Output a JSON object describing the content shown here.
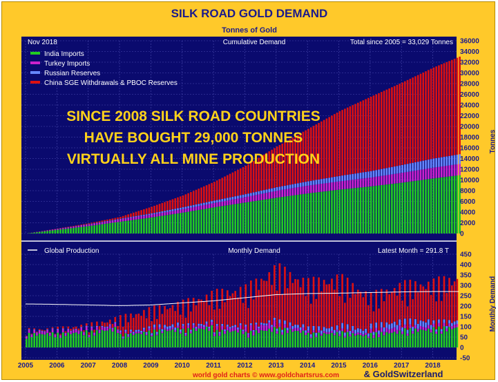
{
  "chart_data": [
    {
      "type": "bar",
      "title": "SILK ROAD GOLD DEMAND",
      "subtitle": "Tonnes of Gold",
      "panel_title": "Cumulative Demand",
      "date_label": "Nov 2018",
      "total_label": "Total since 2005 = 33,029 Tonnes",
      "ylabel": "Tonnes",
      "ylim": [
        0,
        36000
      ],
      "y_ticks": [
        0,
        2000,
        4000,
        6000,
        8000,
        10000,
        12000,
        14000,
        16000,
        18000,
        20000,
        22000,
        24000,
        26000,
        28000,
        30000,
        32000,
        34000,
        36000
      ],
      "stacked": true,
      "series": [
        {
          "name": "India Imports",
          "color": "#22cc22",
          "x": [
            "2005",
            "2006",
            "2007",
            "2008",
            "2009",
            "2010",
            "2011",
            "2012",
            "2013",
            "2014",
            "2015",
            "2016",
            "2017",
            "2018",
            "Nov 2018"
          ],
          "values": [
            0,
            700,
            1400,
            2200,
            3000,
            3900,
            4900,
            5800,
            6700,
            7500,
            8200,
            8800,
            9500,
            10300,
            10900
          ]
        },
        {
          "name": "Turkey Imports",
          "color": "#cc22cc",
          "x": [
            "2005",
            "2006",
            "2007",
            "2008",
            "2009",
            "2010",
            "2011",
            "2012",
            "2013",
            "2014",
            "2015",
            "2016",
            "2017",
            "2018",
            "Nov 2018"
          ],
          "values": [
            0,
            150,
            300,
            450,
            550,
            650,
            800,
            1000,
            1300,
            1450,
            1550,
            1650,
            1850,
            2000,
            2100
          ]
        },
        {
          "name": "Russian Reserves",
          "color": "#6688ff",
          "x": [
            "2005",
            "2006",
            "2007",
            "2008",
            "2009",
            "2010",
            "2011",
            "2012",
            "2013",
            "2014",
            "2015",
            "2016",
            "2017",
            "2018",
            "Nov 2018"
          ],
          "values": [
            0,
            30,
            60,
            100,
            200,
            350,
            450,
            550,
            650,
            800,
            1000,
            1200,
            1450,
            1700,
            1800
          ]
        },
        {
          "name": "China SGE Withdrawals & PBOC Reserves",
          "color": "#dd1111",
          "x": [
            "2005",
            "2006",
            "2007",
            "2008",
            "2009",
            "2010",
            "2011",
            "2012",
            "2013",
            "2014",
            "2015",
            "2016",
            "2017",
            "2018",
            "Nov 2018"
          ],
          "values": [
            0,
            50,
            150,
            350,
            1250,
            2200,
            3500,
            5300,
            7600,
            9800,
            12100,
            13900,
            15400,
            17000,
            18229
          ]
        }
      ],
      "annotation": [
        "SINCE 2008 SILK ROAD COUNTRIES",
        "HAVE BOUGHT 29,000 TONNES",
        "VIRTUALLY ALL MINE PRODUCTION"
      ]
    },
    {
      "type": "bar",
      "panel_title": "Monthly Demand",
      "latest_label": "Latest Month = 291.8 T",
      "ylabel": "Monthly Demand",
      "ylim": [
        -50,
        450
      ],
      "y_ticks": [
        -50,
        0,
        50,
        100,
        150,
        200,
        250,
        300,
        350,
        400,
        450
      ],
      "stacked": true,
      "x_ticks": [
        "2005",
        "2006",
        "2007",
        "2008",
        "2009",
        "2010",
        "2011",
        "2012",
        "2013",
        "2014",
        "2015",
        "2016",
        "2017",
        "2018"
      ],
      "line_series": {
        "name": "Global Production",
        "color": "#ffffff",
        "x": [
          "2005",
          "2006",
          "2007",
          "2008",
          "2009",
          "2010",
          "2011",
          "2012",
          "2013",
          "2014",
          "2015",
          "2016",
          "2017",
          "2018",
          "Nov 2018"
        ],
        "values": [
          210,
          208,
          205,
          202,
          205,
          215,
          225,
          240,
          255,
          260,
          262,
          265,
          268,
          270,
          270
        ]
      },
      "series_note": "Monthly stacked bars use the same four series and colors as the cumulative panel",
      "approx_monthly_totals": {
        "x": [
          "2005",
          "2006",
          "2007",
          "2008",
          "2009",
          "2010",
          "2011",
          "2012",
          "2013",
          "2014",
          "2015",
          "2016",
          "2017",
          "2018",
          "Nov 2018"
        ],
        "values": [
          75,
          80,
          95,
          125,
          160,
          185,
          225,
          245,
          330,
          270,
          290,
          215,
          260,
          270,
          292
        ]
      }
    }
  ],
  "footer": {
    "source": "world gold charts © www.goldchartsrus.com",
    "partner": "& GoldSwitzerland"
  },
  "legend": {
    "production_label": "Global Production"
  }
}
